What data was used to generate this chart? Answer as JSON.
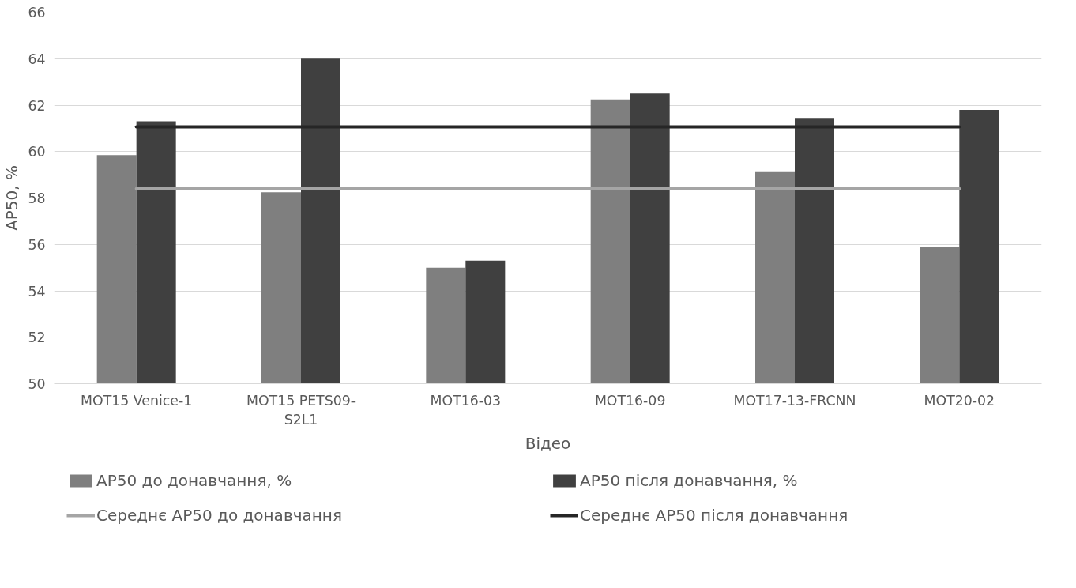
{
  "chart_data": {
    "type": "bar",
    "xlabel": "Відео",
    "ylabel": "AP50, %",
    "categories": [
      "MOT15 Venice-1",
      "MOT15 PETS09-S2L1",
      "MOT16-03",
      "MOT16-09",
      "MOT17-13-FRCNN",
      "MOT20-02"
    ],
    "series": [
      {
        "name": "AP50 до донавчання, %",
        "color": "#7f7f7f",
        "values": [
          59.85,
          58.25,
          55.0,
          62.25,
          59.15,
          55.9
        ]
      },
      {
        "name": "AP50 після донавчання, %",
        "color": "#404040",
        "values": [
          61.3,
          64.0,
          55.3,
          62.5,
          61.45,
          61.8
        ]
      },
      {
        "name": "Середнє AP50 до донавчання",
        "type": "line",
        "color": "#a5a5a5",
        "values": [
          58.4,
          58.4,
          58.4,
          58.4,
          58.4,
          58.4
        ]
      },
      {
        "name": "Середнє AP50 після донавчання",
        "type": "line",
        "color": "#262626",
        "values": [
          61.06,
          61.06,
          61.06,
          61.06,
          61.06,
          61.06
        ]
      }
    ],
    "ylim": [
      50,
      66
    ],
    "yticks": [
      50,
      52,
      54,
      56,
      58,
      60,
      62,
      64,
      66
    ],
    "grid": "y",
    "legend": "bottom"
  }
}
